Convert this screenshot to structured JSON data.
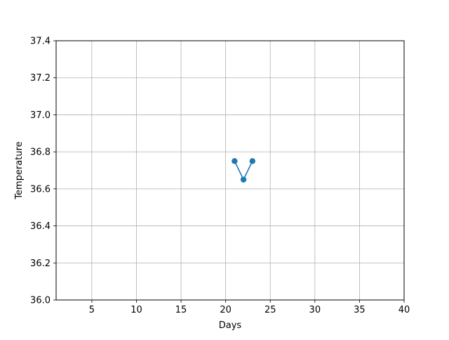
{
  "chart_data": {
    "type": "line",
    "title": "",
    "xlabel": "Days",
    "ylabel": "Temperature",
    "xlim": [
      1,
      40
    ],
    "ylim": [
      36.0,
      37.4
    ],
    "x_ticks": [
      5,
      10,
      15,
      20,
      25,
      30,
      35,
      40
    ],
    "y_ticks": [
      36.0,
      36.2,
      36.4,
      36.6,
      36.8,
      37.0,
      37.2,
      37.4
    ],
    "grid": true,
    "legend": "none",
    "series": [
      {
        "x": [
          21,
          22,
          23
        ],
        "y": [
          36.75,
          36.65,
          36.75
        ],
        "color": "#1f77b4",
        "marker": "circle"
      }
    ]
  }
}
